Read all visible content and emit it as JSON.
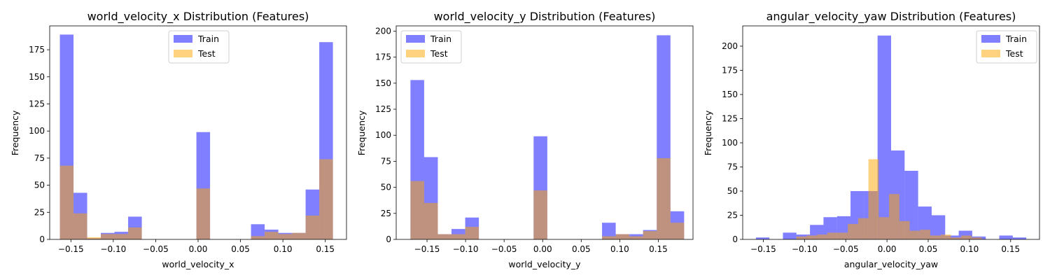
{
  "colors": {
    "train": "#0000ff",
    "test": "#ffa500",
    "overlap": "#bc8f80",
    "bar_alpha": 0.5
  },
  "chart_data": [
    {
      "type": "bar",
      "title": "world_velocity_x Distribution (Features)",
      "xlabel": "world_velocity_x",
      "ylabel": "Frequency",
      "xlim": [
        -0.175,
        0.175
      ],
      "ylim": [
        0,
        197
      ],
      "xticks": [
        -0.15,
        -0.1,
        -0.05,
        0.0,
        0.05,
        0.1,
        0.15
      ],
      "xtick_labels": [
        "−0.15",
        "−0.10",
        "−0.05",
        "0.00",
        "0.05",
        "0.10",
        "0.15"
      ],
      "yticks": [
        0,
        25,
        50,
        75,
        100,
        125,
        150,
        175
      ],
      "legend": "top-center",
      "bin_start": -0.163,
      "bin_width": 0.0161,
      "series": [
        {
          "name": "Train",
          "values": [
            189,
            43,
            1,
            6,
            7,
            21,
            0,
            0,
            0,
            0,
            99,
            0,
            0,
            0,
            14,
            9,
            6,
            6,
            46,
            182
          ]
        },
        {
          "name": "Test",
          "values": [
            68,
            24,
            2,
            5,
            5,
            11,
            0,
            0,
            0,
            0,
            47,
            0,
            0,
            0,
            3,
            7,
            5,
            6,
            22,
            74
          ]
        }
      ]
    },
    {
      "type": "bar",
      "title": "world_velocity_y Distribution (Features)",
      "xlabel": "world_velocity_y",
      "ylabel": "Frequency",
      "xlim": [
        -0.19,
        0.195
      ],
      "ylim": [
        0,
        205
      ],
      "xticks": [
        -0.15,
        -0.1,
        -0.05,
        0.0,
        0.05,
        0.1,
        0.15
      ],
      "xtick_labels": [
        "−0.15",
        "−0.10",
        "−0.05",
        "0.00",
        "0.05",
        "0.10",
        "0.15"
      ],
      "yticks": [
        0,
        25,
        50,
        75,
        100,
        125,
        150,
        175,
        200
      ],
      "legend": "top-left",
      "bin_start": -0.1715,
      "bin_width": 0.01775,
      "series": [
        {
          "name": "Train",
          "values": [
            153,
            79,
            5,
            10,
            21,
            0,
            0,
            0,
            0,
            99,
            0,
            0,
            0,
            0,
            16,
            5,
            5,
            9,
            196,
            27
          ]
        },
        {
          "name": "Test",
          "values": [
            56,
            35,
            5,
            5,
            12,
            0,
            0,
            0,
            0,
            47,
            0,
            0,
            0,
            0,
            3,
            5,
            3,
            8,
            78,
            16
          ]
        }
      ]
    },
    {
      "type": "bar",
      "title": "angular_velocity_yaw Distribution (Features)",
      "xlabel": "angular_velocity_yaw",
      "ylabel": "Frequency",
      "xlim": [
        -0.175,
        0.185
      ],
      "ylim": [
        0,
        221
      ],
      "xticks": [
        -0.15,
        -0.1,
        -0.05,
        0.0,
        0.05,
        0.1,
        0.15
      ],
      "xtick_labels": [
        "−0.15",
        "−0.10",
        "−0.05",
        "0.00",
        "0.05",
        "0.10",
        "0.15"
      ],
      "yticks": [
        0,
        25,
        50,
        75,
        100,
        125,
        150,
        175,
        200
      ],
      "legend": "top-right",
      "series": [
        {
          "name": "Train",
          "bin_start": -0.159,
          "bin_width": 0.0164,
          "values": [
            2,
            0,
            7,
            5,
            15,
            23,
            24,
            50,
            50,
            211,
            92,
            71,
            34,
            25,
            4,
            9,
            3,
            0,
            4,
            2
          ]
        },
        {
          "name": "Test",
          "bin_start": -0.11,
          "bin_width": 0.0125,
          "values": [
            3,
            4,
            5,
            7,
            7,
            16,
            22,
            83,
            23,
            47,
            19,
            9,
            10,
            4,
            5,
            2,
            4,
            2
          ]
        }
      ]
    }
  ]
}
